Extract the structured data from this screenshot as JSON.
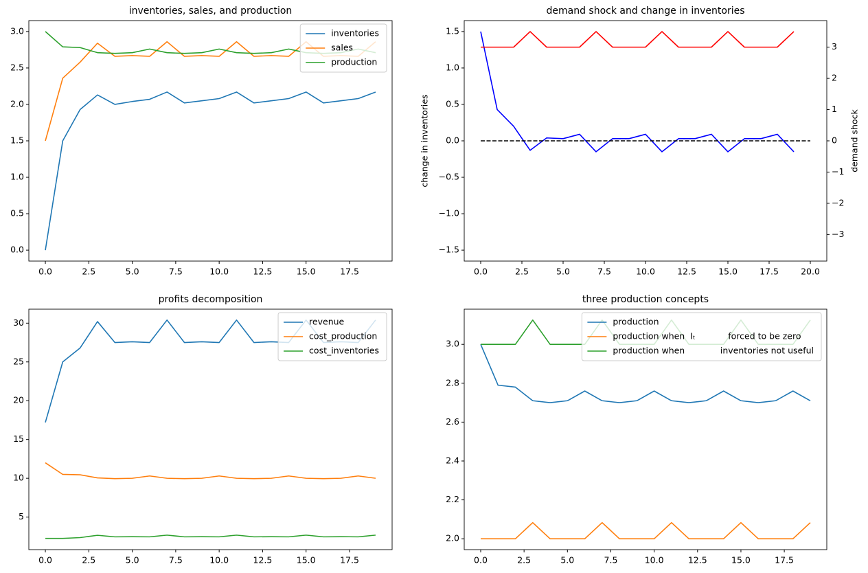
{
  "chart_data": [
    {
      "type": "line",
      "title": "inventories, sales, and production",
      "x": [
        0,
        1,
        2,
        3,
        4,
        5,
        6,
        7,
        8,
        9,
        10,
        11,
        12,
        13,
        14,
        15,
        16,
        17,
        18,
        19
      ],
      "series": [
        {
          "name": "inventories",
          "color": "#1f77b4",
          "values": [
            0,
            1.5,
            1.93,
            2.13,
            2.0,
            2.04,
            2.07,
            2.17,
            2.02,
            2.05,
            2.08,
            2.17,
            2.02,
            2.05,
            2.08,
            2.17,
            2.02,
            2.05,
            2.08,
            2.17
          ]
        },
        {
          "name": "sales",
          "color": "#ff7f0e",
          "values": [
            1.5,
            2.36,
            2.58,
            2.84,
            2.66,
            2.67,
            2.66,
            2.86,
            2.66,
            2.67,
            2.66,
            2.86,
            2.66,
            2.67,
            2.66,
            2.86,
            2.66,
            2.67,
            2.66,
            2.86
          ]
        },
        {
          "name": "production",
          "color": "#2ca02c",
          "values": [
            3.0,
            2.79,
            2.78,
            2.71,
            2.7,
            2.71,
            2.76,
            2.71,
            2.7,
            2.71,
            2.76,
            2.71,
            2.7,
            2.71,
            2.76,
            2.71,
            2.7,
            2.71,
            2.76,
            2.71
          ]
        }
      ],
      "xlim": [
        -0.95,
        19.95
      ],
      "ylim": [
        -0.15,
        3.15
      ],
      "xticks": [
        {
          "value": 0,
          "label": "0.0"
        },
        {
          "value": 2.5,
          "label": "2.5"
        },
        {
          "value": 5,
          "label": "5.0"
        },
        {
          "value": 7.5,
          "label": "7.5"
        },
        {
          "value": 10,
          "label": "10.0"
        },
        {
          "value": 12.5,
          "label": "12.5"
        },
        {
          "value": 15,
          "label": "15.0"
        },
        {
          "value": 17.5,
          "label": "17.5"
        }
      ],
      "yticks": [
        {
          "value": 0,
          "label": "0.0"
        },
        0.5,
        {
          "value": 1,
          "label": "1.0"
        },
        1.5,
        {
          "value": 2,
          "label": "2.0"
        },
        2.5,
        {
          "value": 3,
          "label": "3.0"
        }
      ],
      "legend": "upper right"
    },
    {
      "type": "line",
      "title": "demand shock and change in inventories",
      "x": [
        0,
        1,
        2,
        3,
        4,
        5,
        6,
        7,
        8,
        9,
        10,
        11,
        12,
        13,
        14,
        15,
        16,
        17,
        18,
        19
      ],
      "ylabel": "change in inventories",
      "ylabel_color": "#0000ff",
      "y2label": "demand shock",
      "y2label_color": "#ff0000",
      "series": [
        {
          "color": "#0000ff",
          "values": [
            1.5,
            0.43,
            0.2,
            -0.13,
            0.04,
            0.03,
            0.09,
            -0.15,
            0.03,
            0.03,
            0.09,
            -0.15,
            0.03,
            0.03,
            0.09,
            -0.15,
            0.03,
            0.03,
            0.09,
            -0.15
          ]
        },
        {
          "color": "#000000",
          "dashed": true,
          "x": [
            0,
            20
          ],
          "values": [
            0,
            0
          ]
        },
        {
          "color": "#ff0000",
          "axis": "y2",
          "values": [
            3,
            3,
            3,
            3.5,
            3,
            3,
            3,
            3.5,
            3,
            3,
            3,
            3.5,
            3,
            3,
            3,
            3.5,
            3,
            3,
            3,
            3.5
          ]
        }
      ],
      "xlim": [
        -1,
        21
      ],
      "ylim": [
        -1.65,
        1.65
      ],
      "y2lim": [
        -3.85,
        3.85
      ],
      "xticks": [
        {
          "value": 0,
          "label": "0.0"
        },
        {
          "value": 2.5,
          "label": "2.5"
        },
        {
          "value": 5,
          "label": "5.0"
        },
        {
          "value": 7.5,
          "label": "7.5"
        },
        {
          "value": 10,
          "label": "10.0"
        },
        {
          "value": 12.5,
          "label": "12.5"
        },
        {
          "value": 15,
          "label": "15.0"
        },
        {
          "value": 17.5,
          "label": "17.5"
        },
        {
          "value": 20,
          "label": "20.0"
        }
      ],
      "yticks": [
        {
          "value": -1.5,
          "label": "−1.5"
        },
        {
          "value": -1,
          "label": "−1.0"
        },
        {
          "value": -0.5,
          "label": "−0.5"
        },
        {
          "value": 0,
          "label": "0.0"
        },
        0.5,
        {
          "value": 1,
          "label": "1.0"
        },
        1.5
      ],
      "y2ticks": [
        {
          "value": -3,
          "label": "−3"
        },
        {
          "value": -2,
          "label": "−2"
        },
        {
          "value": -1,
          "label": "−1"
        },
        0,
        1,
        2,
        3
      ]
    },
    {
      "type": "line",
      "title": "profits decomposition",
      "x": [
        0,
        1,
        2,
        3,
        4,
        5,
        6,
        7,
        8,
        9,
        10,
        11,
        12,
        13,
        14,
        15,
        16,
        17,
        18,
        19
      ],
      "series": [
        {
          "name": "revenue",
          "color": "#1f77b4",
          "values": [
            17.2,
            25.0,
            26.8,
            30.2,
            27.5,
            27.6,
            27.5,
            30.4,
            27.5,
            27.6,
            27.5,
            30.4,
            27.5,
            27.6,
            27.5,
            30.4,
            27.5,
            27.6,
            27.5,
            30.4
          ]
        },
        {
          "name": "cost_production",
          "color": "#ff7f0e",
          "values": [
            12.0,
            10.5,
            10.45,
            10.05,
            9.95,
            10.0,
            10.3,
            10.0,
            9.95,
            10.0,
            10.3,
            10.0,
            9.95,
            10.0,
            10.3,
            10.0,
            9.95,
            10.0,
            10.3,
            10.0
          ]
        },
        {
          "name": "cost_inventories",
          "color": "#2ca02c",
          "values": [
            2.25,
            2.25,
            2.35,
            2.65,
            2.45,
            2.47,
            2.45,
            2.67,
            2.45,
            2.47,
            2.45,
            2.67,
            2.45,
            2.47,
            2.45,
            2.67,
            2.45,
            2.47,
            2.45,
            2.67
          ]
        }
      ],
      "xlim": [
        -0.95,
        19.95
      ],
      "ylim": [
        0.8,
        31.8
      ],
      "xticks": [
        {
          "value": 0,
          "label": "0.0"
        },
        {
          "value": 2.5,
          "label": "2.5"
        },
        {
          "value": 5,
          "label": "5.0"
        },
        {
          "value": 7.5,
          "label": "7.5"
        },
        {
          "value": 10,
          "label": "10.0"
        },
        {
          "value": 12.5,
          "label": "12.5"
        },
        {
          "value": 15,
          "label": "15.0"
        },
        {
          "value": 17.5,
          "label": "17.5"
        }
      ],
      "yticks": [
        5,
        10,
        15,
        20,
        25,
        30
      ],
      "legend": "upper right"
    },
    {
      "type": "line",
      "title": "three production concepts",
      "x": [
        0,
        1,
        2,
        3,
        4,
        5,
        6,
        7,
        8,
        9,
        10,
        11,
        12,
        13,
        14,
        15,
        16,
        17,
        18,
        19
      ],
      "series": [
        {
          "name": "production",
          "color": "#1f77b4",
          "values": [
            3.0,
            2.79,
            2.78,
            2.71,
            2.7,
            2.71,
            2.76,
            2.71,
            2.7,
            2.71,
            2.76,
            2.71,
            2.7,
            2.71,
            2.76,
            2.71,
            2.7,
            2.71,
            2.76,
            2.71
          ]
        },
        {
          "name": "production when  Iₜ            forced to be zero",
          "color": "#ff7f0e",
          "values": [
            2.0,
            2.0,
            2.0,
            2.083,
            2.0,
            2.0,
            2.0,
            2.083,
            2.0,
            2.0,
            2.0,
            2.083,
            2.0,
            2.0,
            2.0,
            2.083,
            2.0,
            2.0,
            2.0,
            2.083
          ]
        },
        {
          "name": "production when             inventories not useful",
          "color": "#2ca02c",
          "values": [
            3.0,
            3.0,
            3.0,
            3.125,
            3.0,
            3.0,
            3.0,
            3.125,
            3.0,
            3.0,
            3.0,
            3.125,
            3.0,
            3.0,
            3.0,
            3.125,
            3.0,
            3.0,
            3.0,
            3.125
          ]
        }
      ],
      "xlim": [
        -0.95,
        19.95
      ],
      "ylim": [
        1.944,
        3.181
      ],
      "xticks": [
        {
          "value": 0,
          "label": "0.0"
        },
        {
          "value": 2.5,
          "label": "2.5"
        },
        {
          "value": 5,
          "label": "5.0"
        },
        {
          "value": 7.5,
          "label": "7.5"
        },
        {
          "value": 10,
          "label": "10.0"
        },
        {
          "value": 12.5,
          "label": "12.5"
        },
        {
          "value": 15,
          "label": "15.0"
        },
        {
          "value": 17.5,
          "label": "17.5"
        }
      ],
      "yticks": [
        {
          "value": 2,
          "label": "2.0"
        },
        2.2,
        2.4,
        2.6,
        2.8,
        {
          "value": 3,
          "label": "3.0"
        }
      ],
      "legend": "upper right"
    }
  ]
}
